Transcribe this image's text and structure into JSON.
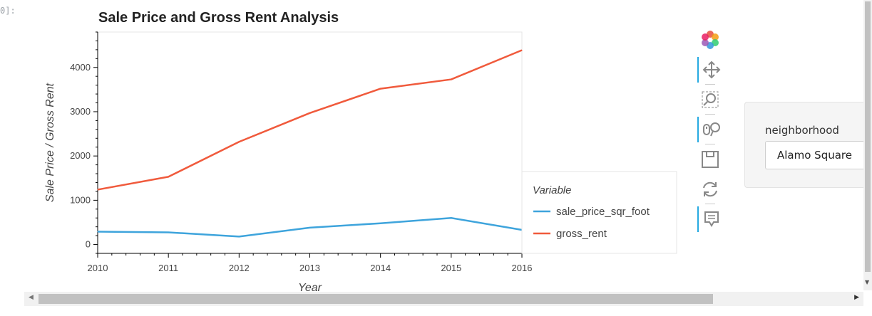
{
  "prompt": "0]:",
  "chart_data": {
    "type": "line",
    "title": "Sale Price and Gross Rent Analysis",
    "xlabel": "Year",
    "ylabel": "Sale Price / Gross Rent",
    "x": [
      2010,
      2011,
      2012,
      2013,
      2014,
      2015,
      2016
    ],
    "xlim": [
      2010,
      2016
    ],
    "ylim": [
      -200,
      4800
    ],
    "xticks": [
      2010,
      2011,
      2012,
      2013,
      2014,
      2015,
      2016
    ],
    "yticks": [
      0,
      1000,
      2000,
      3000,
      4000
    ],
    "grid": false,
    "legend_title": "Variable",
    "legend_position": "right",
    "series": [
      {
        "name": "sale_price_sqr_foot",
        "color": "#3ea4dc",
        "values": [
          290,
          275,
          180,
          380,
          480,
          600,
          330
        ]
      },
      {
        "name": "gross_rent",
        "color": "#f05a3c",
        "values": [
          1240,
          1530,
          2320,
          2970,
          3520,
          3730,
          4390
        ]
      }
    ]
  },
  "toolbar": {
    "tools": [
      {
        "icon": "bokeh-logo-icon"
      },
      {
        "icon": "pan-icon"
      },
      {
        "icon": "box-zoom-icon"
      },
      {
        "icon": "wheel-zoom-icon"
      },
      {
        "icon": "save-icon"
      },
      {
        "icon": "reset-icon"
      },
      {
        "icon": "hover-icon"
      }
    ]
  },
  "widget": {
    "label": "neighborhood",
    "selected": "Alamo Square"
  }
}
